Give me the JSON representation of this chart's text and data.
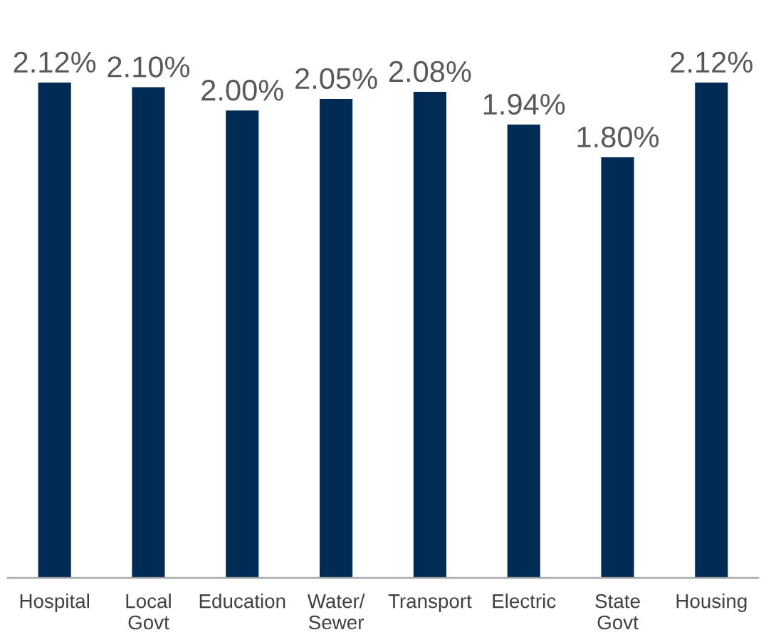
{
  "chart_data": {
    "type": "bar",
    "categories": [
      "Hospital",
      "Local\nGovt",
      "Education",
      "Water/\nSewer",
      "Transport",
      "Electric",
      "State\nGovt",
      "Housing"
    ],
    "values": [
      2.12,
      2.1,
      2.0,
      2.05,
      2.08,
      1.94,
      1.8,
      2.12
    ],
    "value_labels": [
      "2.12%",
      "2.10%",
      "2.00%",
      "2.05%",
      "2.08%",
      "1.94%",
      "1.80%",
      "2.12%"
    ],
    "color": "#002b54",
    "grid": false,
    "legend": false
  }
}
